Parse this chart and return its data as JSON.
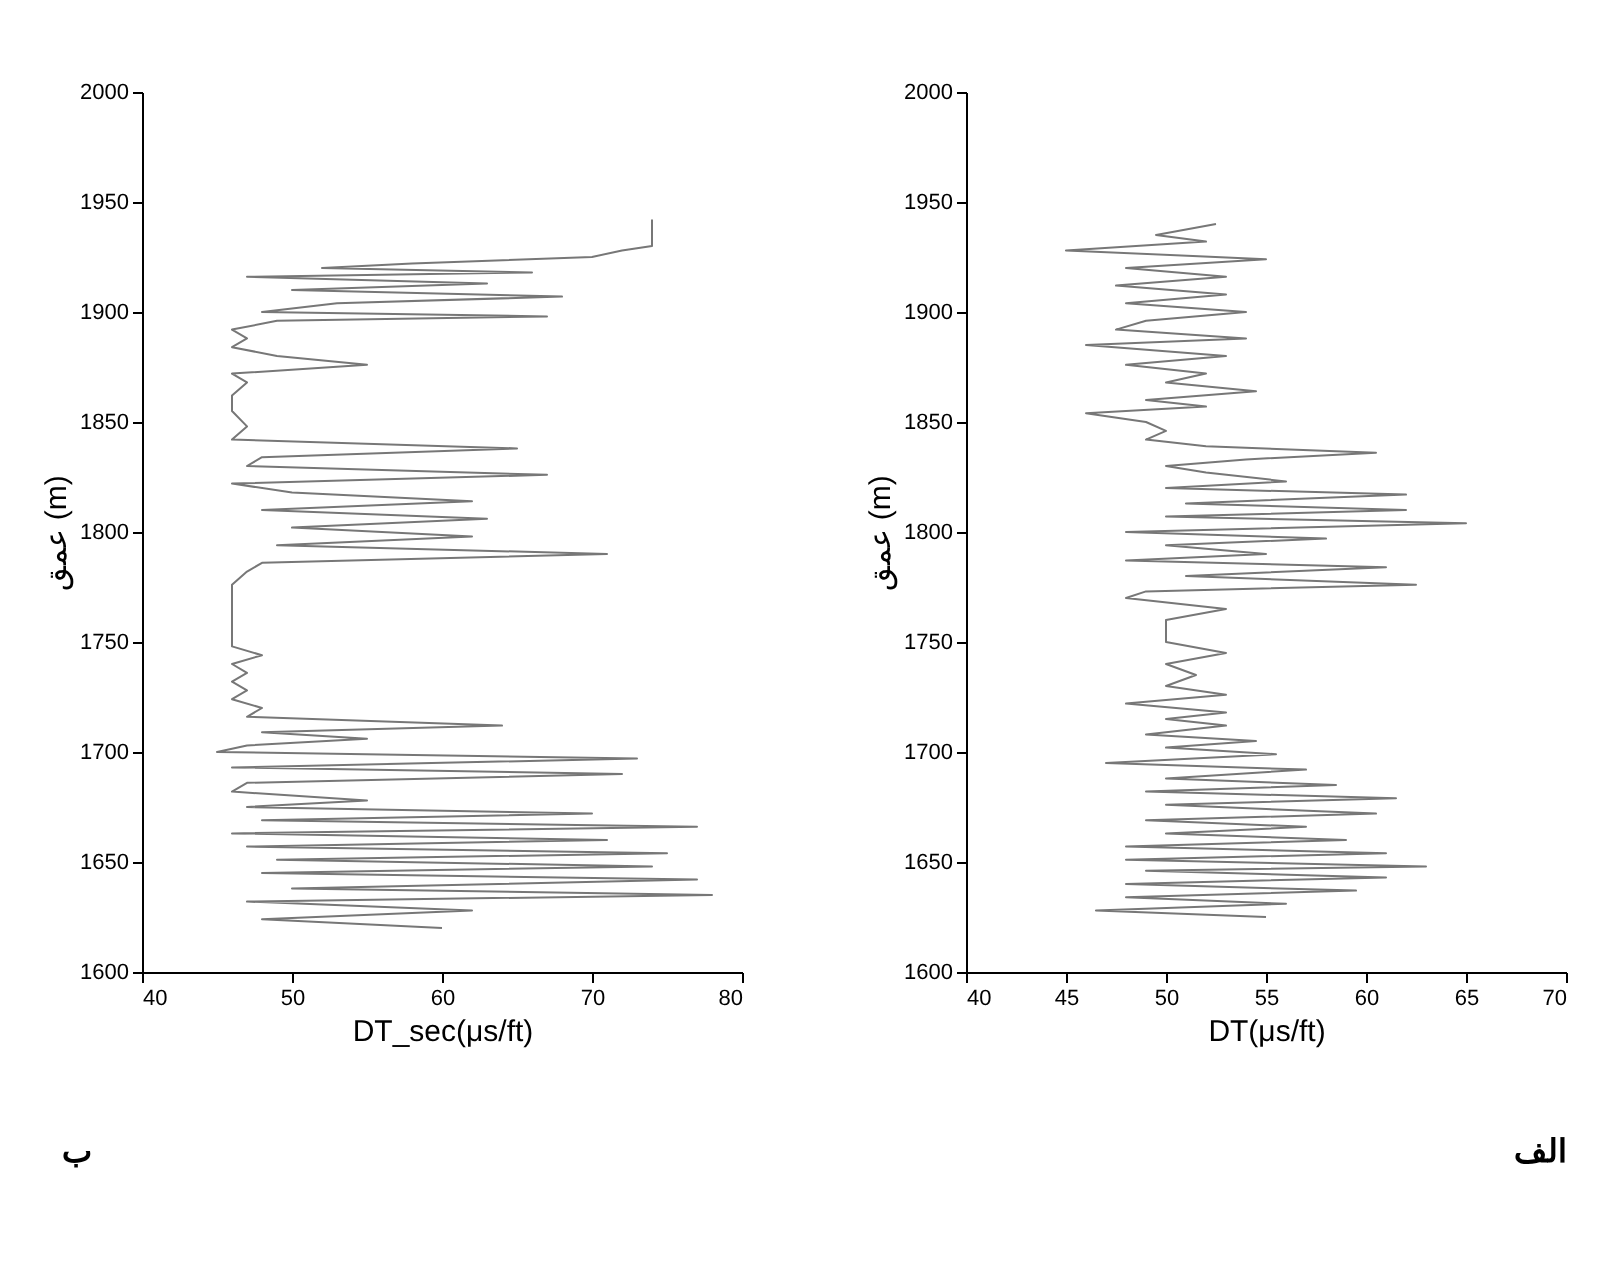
{
  "chart_data": [
    {
      "type": "line",
      "xlabel": "DT_sec(μs/ft)",
      "ylabel": "عمق (m)",
      "annotations": [
        "ب"
      ],
      "xlim": [
        40,
        80
      ],
      "xticks": [
        40,
        50,
        60,
        70,
        80
      ],
      "ylim": [
        1600,
        2000
      ],
      "yticks": [
        1600,
        1650,
        1700,
        1750,
        1800,
        1850,
        1900,
        1950,
        2000
      ],
      "grid": false,
      "series": [
        {
          "color": "#777777",
          "x": [
            60,
            48,
            62,
            47,
            78,
            50,
            77,
            48,
            74,
            49,
            75,
            47,
            71,
            46,
            77,
            48,
            70,
            47,
            55,
            46,
            47,
            72,
            46,
            73,
            45,
            47,
            55,
            48,
            64,
            47,
            48,
            46,
            47,
            46,
            47,
            46,
            48,
            46,
            46,
            46,
            46,
            46,
            46,
            47,
            48,
            71,
            49,
            62,
            50,
            63,
            48,
            62,
            50,
            46,
            67,
            47,
            48,
            65,
            46,
            47,
            46,
            46,
            47,
            46,
            55,
            49,
            46,
            47,
            46,
            49,
            67,
            48,
            53,
            68,
            50,
            63,
            47,
            66,
            52,
            58,
            70,
            72,
            74,
            74
          ],
          "values": [
            1620,
            1624,
            1628,
            1632,
            1635,
            1638,
            1642,
            1645,
            1648,
            1651,
            1654,
            1657,
            1660,
            1663,
            1666,
            1669,
            1672,
            1675,
            1678,
            1682,
            1686,
            1690,
            1693,
            1697,
            1700,
            1703,
            1706,
            1709,
            1712,
            1716,
            1720,
            1724,
            1728,
            1732,
            1736,
            1740,
            1744,
            1748,
            1752,
            1758,
            1764,
            1770,
            1776,
            1782,
            1786,
            1790,
            1794,
            1798,
            1802,
            1806,
            1810,
            1814,
            1818,
            1822,
            1826,
            1830,
            1834,
            1838,
            1842,
            1848,
            1855,
            1862,
            1868,
            1872,
            1876,
            1880,
            1884,
            1888,
            1892,
            1896,
            1898,
            1900,
            1904,
            1907,
            1910,
            1913,
            1916,
            1918,
            1920,
            1922,
            1925,
            1928,
            1930,
            1942
          ]
        }
      ]
    },
    {
      "type": "line",
      "xlabel": "DT(μs/ft)",
      "ylabel": "عمق (m)",
      "annotations": [
        "الف"
      ],
      "xlim": [
        40,
        70
      ],
      "xticks": [
        40,
        45,
        50,
        55,
        60,
        65,
        70
      ],
      "ylim": [
        1600,
        2000
      ],
      "yticks": [
        1600,
        1650,
        1700,
        1750,
        1800,
        1850,
        1900,
        1950,
        2000
      ],
      "grid": false,
      "series": [
        {
          "color": "#777777",
          "x": [
            55,
            46.5,
            56,
            48,
            59.5,
            48,
            61,
            49,
            63,
            48,
            61,
            48,
            59,
            50,
            57,
            49,
            60.5,
            50,
            61.5,
            49,
            58.5,
            50,
            57,
            47,
            55.5,
            50,
            54.5,
            49,
            53,
            50,
            53,
            48,
            53,
            50,
            51.5,
            50,
            53,
            50,
            50,
            50,
            53,
            48,
            49,
            62.5,
            51,
            61,
            48,
            55,
            50,
            58,
            48,
            65,
            50,
            62,
            51,
            62,
            50,
            56,
            52,
            50,
            54,
            60.5,
            52,
            49,
            50,
            49,
            46,
            52,
            49,
            54.5,
            50,
            52,
            48,
            53,
            46,
            54,
            47.5,
            49,
            54,
            48,
            53,
            47.5,
            53,
            48,
            55,
            45,
            52,
            49.5,
            52.5
          ],
          "values": [
            1625,
            1628,
            1631,
            1634,
            1637,
            1640,
            1643,
            1646,
            1648,
            1651,
            1654,
            1657,
            1660,
            1663,
            1666,
            1669,
            1672,
            1676,
            1679,
            1682,
            1685,
            1688,
            1692,
            1695,
            1699,
            1702,
            1705,
            1708,
            1712,
            1715,
            1718,
            1722,
            1726,
            1730,
            1735,
            1740,
            1745,
            1750,
            1755,
            1760,
            1765,
            1770,
            1773,
            1776,
            1780,
            1784,
            1787,
            1790,
            1794,
            1797,
            1800,
            1804,
            1807,
            1810,
            1813,
            1817,
            1820,
            1823,
            1827,
            1830,
            1833,
            1836,
            1839,
            1842,
            1846,
            1850,
            1854,
            1857,
            1860,
            1864,
            1868,
            1872,
            1876,
            1880,
            1885,
            1888,
            1892,
            1896,
            1900,
            1904,
            1908,
            1912,
            1916,
            1920,
            1924,
            1928,
            1932,
            1935,
            1940
          ]
        }
      ]
    }
  ]
}
